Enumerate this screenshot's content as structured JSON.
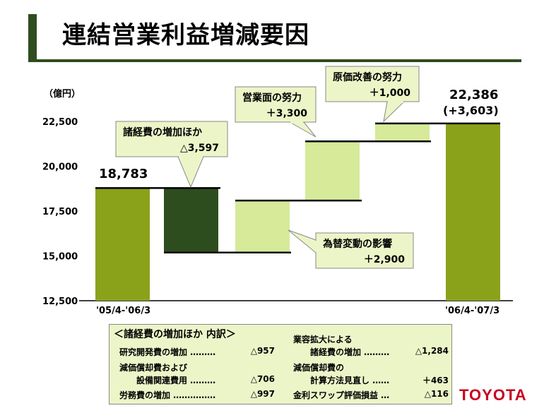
{
  "title": "連結営業利益増減要因",
  "unit": "（億円）",
  "colors": {
    "dark_green": "#2e4d1e",
    "olive": "#8aa21a",
    "light_green": "#d6ea9a",
    "callout_bg": "#ecf5c8"
  },
  "chart_data": {
    "type": "bar",
    "subtype": "waterfall",
    "ylim": [
      12500,
      22500
    ],
    "yticks": [
      "22,500",
      "20,000",
      "17,500",
      "15,000",
      "12,500"
    ],
    "ytick_values": [
      22500,
      20000,
      17500,
      15000,
      12500
    ],
    "categories": [
      "'05/4-'06/3",
      "",
      "",
      "",
      "",
      "'06/4-'07/3"
    ],
    "bars": [
      {
        "kind": "total",
        "from": 12500,
        "to": 18783,
        "color": "olive",
        "label": "18,783"
      },
      {
        "kind": "decrease",
        "from": 18783,
        "to": 15186,
        "color": "dark_green",
        "callout": [
          "諸経費の増加ほか",
          "△3,597"
        ]
      },
      {
        "kind": "increase",
        "from": 15186,
        "to": 18086,
        "color": "light_green",
        "callout": [
          "為替変動の影響",
          "＋2,900"
        ]
      },
      {
        "kind": "increase",
        "from": 18086,
        "to": 21386,
        "color": "light_green",
        "callout": [
          "営業面の努力",
          "＋3,300"
        ]
      },
      {
        "kind": "increase",
        "from": 21386,
        "to": 22386,
        "color": "light_green",
        "callout": [
          "原価改善の努力",
          "＋1,000"
        ]
      },
      {
        "kind": "total",
        "from": 12500,
        "to": 22386,
        "color": "olive",
        "label": "22,386",
        "label2": "(+3,603)"
      }
    ]
  },
  "breakdown": {
    "heading": "＜諸経費の増加ほか 内訳＞",
    "left": [
      {
        "label": "研究開発費の増加 ………",
        "value": "△957"
      },
      {
        "label": "減価償却費および",
        "value": ""
      },
      {
        "label": "　　設備関連費用 ………",
        "value": "△706"
      },
      {
        "label": "労務費の増加 ……………",
        "value": "△997"
      }
    ],
    "right": [
      {
        "label": "業容拡大による",
        "value": ""
      },
      {
        "label": "　　諸経費の増加 ………",
        "value": "△1,284"
      },
      {
        "label": "減価償却費の",
        "value": ""
      },
      {
        "label": "　　計算方法見直し ……",
        "value": "＋463"
      },
      {
        "label": "金利スワップ評価損益 …",
        "value": "△116"
      }
    ]
  },
  "logo": "TOYOTA"
}
